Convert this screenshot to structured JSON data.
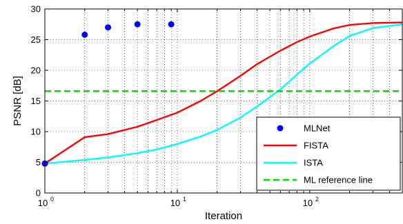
{
  "chart_data": {
    "type": "line",
    "xlabel": "Iteration",
    "ylabel": "PSNR [dB]",
    "x_scale": "log",
    "xlim": [
      1,
      500
    ],
    "ylim": [
      0,
      30
    ],
    "grid": true,
    "legend_position": "bottom-right",
    "x_ticks": [
      {
        "value": 1,
        "base": "10",
        "exp": "0"
      },
      {
        "value": 10,
        "base": "10",
        "exp": "1"
      },
      {
        "value": 100,
        "base": "10",
        "exp": "2"
      }
    ],
    "y_ticks": [
      "0",
      "5",
      "10",
      "15",
      "20",
      "25",
      "30"
    ],
    "series": [
      {
        "name": "MLNet",
        "kind": "scatter",
        "color": "#0000ff",
        "points": [
          [
            1,
            4.8
          ],
          [
            2,
            25.8
          ],
          [
            3,
            27.0
          ],
          [
            5,
            27.5
          ],
          [
            9,
            27.5
          ]
        ]
      },
      {
        "name": "FISTA",
        "kind": "line",
        "color": "#ff0000",
        "points": [
          [
            1,
            4.8
          ],
          [
            2,
            9.1
          ],
          [
            3,
            9.6
          ],
          [
            5,
            10.8
          ],
          [
            7,
            11.9
          ],
          [
            10,
            13.1
          ],
          [
            15,
            15.0
          ],
          [
            20,
            16.6
          ],
          [
            30,
            19.1
          ],
          [
            40,
            21.0
          ],
          [
            60,
            23.2
          ],
          [
            80,
            24.6
          ],
          [
            100,
            25.5
          ],
          [
            150,
            26.8
          ],
          [
            200,
            27.4
          ],
          [
            300,
            27.7
          ],
          [
            500,
            27.8
          ]
        ]
      },
      {
        "name": "ISTA",
        "kind": "line",
        "color": "#00ffff",
        "points": [
          [
            1,
            4.8
          ],
          [
            2,
            5.4
          ],
          [
            3,
            5.8
          ],
          [
            5,
            6.5
          ],
          [
            7,
            7.1
          ],
          [
            10,
            8.0
          ],
          [
            15,
            9.2
          ],
          [
            20,
            10.3
          ],
          [
            30,
            12.3
          ],
          [
            40,
            14.1
          ],
          [
            60,
            16.9
          ],
          [
            80,
            19.3
          ],
          [
            100,
            21.1
          ],
          [
            150,
            23.9
          ],
          [
            200,
            25.6
          ],
          [
            300,
            26.9
          ],
          [
            500,
            27.5
          ]
        ]
      },
      {
        "name": "ML reference line",
        "kind": "hline",
        "color": "#00dd00",
        "y": 16.6
      }
    ]
  }
}
